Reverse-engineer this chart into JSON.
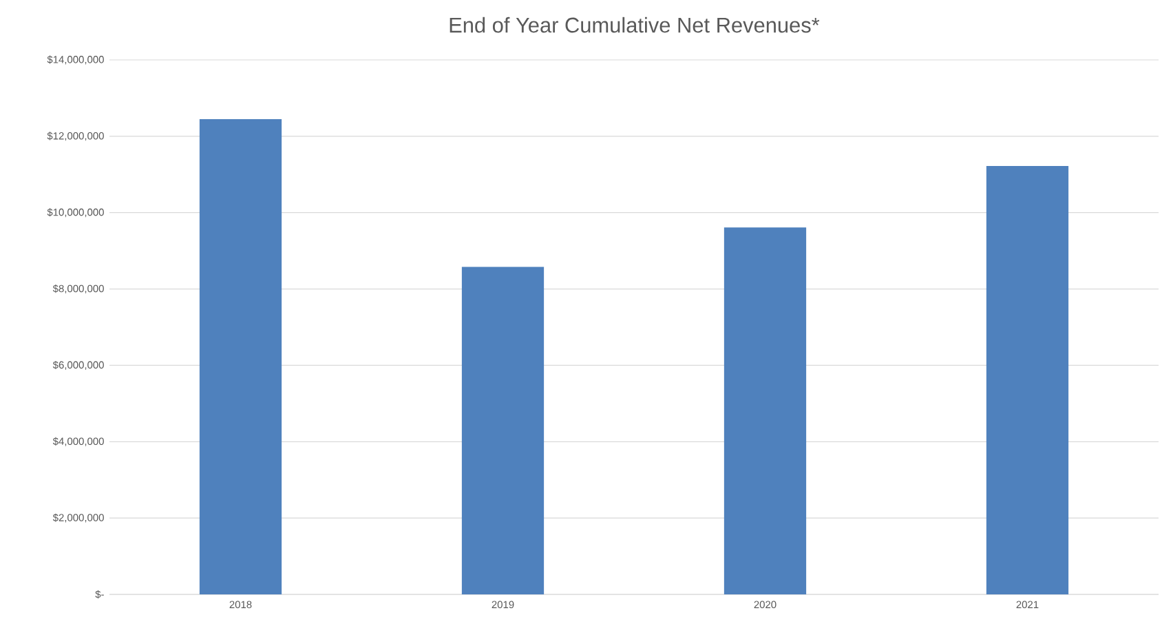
{
  "chart_data": {
    "type": "bar",
    "title": "End of Year Cumulative Net Revenues*",
    "categories": [
      "2018",
      "2019",
      "2020",
      "2021"
    ],
    "values": [
      12450000,
      8580000,
      9610000,
      11220000
    ],
    "color": "#4f81bd",
    "ylim": [
      0,
      14000000
    ],
    "yticks": [
      {
        "value": 0,
        "label": "$-"
      },
      {
        "value": 2000000,
        "label": "$2,000,000"
      },
      {
        "value": 4000000,
        "label": "$4,000,000"
      },
      {
        "value": 6000000,
        "label": "$6,000,000"
      },
      {
        "value": 8000000,
        "label": "$8,000,000"
      },
      {
        "value": 10000000,
        "label": "$10,000,000"
      },
      {
        "value": 12000000,
        "label": "$12,000,000"
      },
      {
        "value": 14000000,
        "label": "$14,000,000"
      }
    ],
    "grid": "y"
  }
}
